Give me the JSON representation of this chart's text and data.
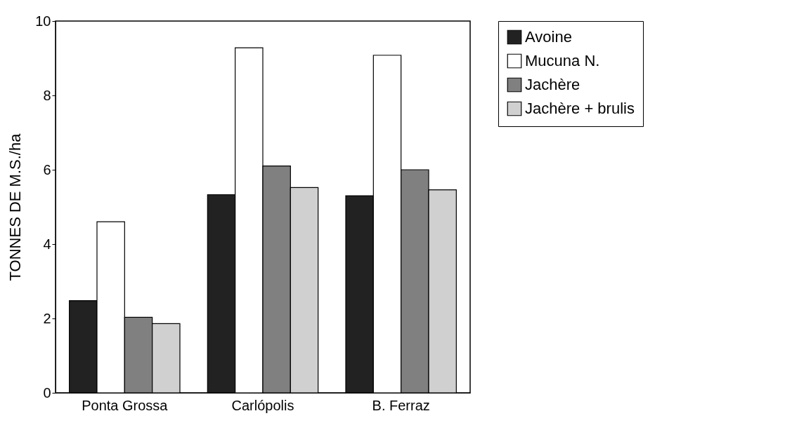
{
  "chart_data": {
    "type": "bar",
    "ylabel": "TONNES DE M.S./ha",
    "categories": [
      "Ponta Grossa",
      "Carlópolis",
      "B. Ferraz"
    ],
    "series": [
      {
        "name": "Avoine",
        "color": "#222222",
        "values": [
          2.48,
          5.33,
          5.3
        ]
      },
      {
        "name": "Mucuna N.",
        "color": "#ffffff",
        "values": [
          4.6,
          9.28,
          9.08
        ]
      },
      {
        "name": "Jachère",
        "color": "#808080",
        "values": [
          2.03,
          6.1,
          6.0
        ]
      },
      {
        "name": "Jachère + brulis",
        "color": "#d0d0d0",
        "values": [
          1.86,
          5.52,
          5.46
        ]
      }
    ],
    "ylim": [
      0,
      10
    ],
    "yticks": [
      0,
      2,
      4,
      6,
      8,
      10
    ],
    "grid": false,
    "legend": "right"
  }
}
